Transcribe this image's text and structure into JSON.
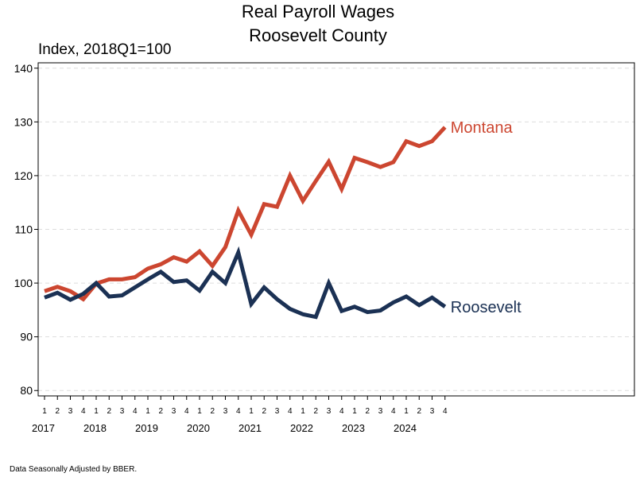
{
  "chart_data": {
    "type": "line",
    "title": "Real Payroll Wages",
    "subtitle": "Roosevelt County",
    "ylabel": "Index, 2018Q1=100",
    "note": "Data Seasonally Adjusted by BBER.",
    "ylim": [
      79,
      141
    ],
    "yticks": [
      80,
      90,
      100,
      110,
      120,
      130,
      140
    ],
    "grid": true,
    "quarter_labels": [
      "1",
      "2",
      "3",
      "4",
      "1",
      "2",
      "3",
      "4",
      "1",
      "2",
      "3",
      "4",
      "1",
      "2",
      "3",
      "4",
      "1",
      "2",
      "3",
      "4",
      "1",
      "2",
      "3",
      "4",
      "1",
      "2",
      "3",
      "4",
      "1",
      "2",
      "3",
      "4"
    ],
    "year_labels": [
      "2017",
      "2018",
      "2019",
      "2020",
      "2021",
      "2022",
      "2023",
      "2024"
    ],
    "series": [
      {
        "name": "Montana",
        "color": "#CC4630",
        "values": [
          98.5,
          99.3,
          98.5,
          97.0,
          99.9,
          100.7,
          100.7,
          101.1,
          102.7,
          103.5,
          104.8,
          104.0,
          105.9,
          103.2,
          106.7,
          113.5,
          109.0,
          114.7,
          114.2,
          120.0,
          115.3,
          119.0,
          122.6,
          117.5,
          123.3,
          122.5,
          121.6,
          122.5,
          126.4,
          125.5,
          126.4,
          129.0
        ]
      },
      {
        "name": "Roosevelt",
        "color": "#1B3154",
        "values": [
          97.3,
          98.2,
          96.9,
          98.0,
          100.0,
          97.5,
          97.7,
          99.2,
          100.7,
          102.1,
          100.2,
          100.5,
          98.6,
          102.1,
          100.0,
          105.7,
          96.1,
          99.2,
          97.0,
          95.2,
          94.2,
          93.7,
          100.0,
          94.8,
          95.6,
          94.6,
          94.9,
          96.4,
          97.5,
          95.9,
          97.3,
          95.6
        ]
      }
    ]
  }
}
